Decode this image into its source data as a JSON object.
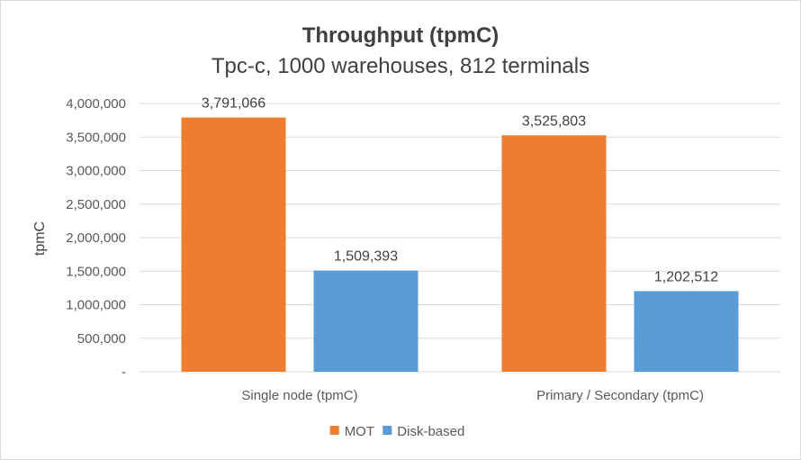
{
  "chart_data": {
    "type": "bar",
    "title": "Throughput (tpmC)",
    "subtitle": "Tpc-c, 1000 warehouses, 812 terminals",
    "xlabel": "",
    "ylabel": "tpmC",
    "categories": [
      "Single node (tpmC)",
      "Primary / Secondary (tpmC)"
    ],
    "series": [
      {
        "name": "MOT",
        "values": [
          3791066,
          3525803
        ],
        "labels": [
          "3,791,066",
          "3,525,803"
        ],
        "color": "#ed7d31"
      },
      {
        "name": "Disk-based",
        "values": [
          1509393,
          1202512
        ],
        "labels": [
          "1,509,393",
          "1,202,512"
        ],
        "color": "#5b9bd5"
      }
    ],
    "ylim": [
      0,
      4000000
    ],
    "yticks": [
      0,
      500000,
      1000000,
      1500000,
      2000000,
      2500000,
      3000000,
      3500000,
      4000000
    ],
    "ytick_labels": [
      "-",
      "500,000",
      "1,000,000",
      "1,500,000",
      "2,000,000",
      "2,500,000",
      "3,000,000",
      "3,500,000",
      "4,000,000"
    ],
    "grid": true,
    "legend_position": "bottom"
  }
}
